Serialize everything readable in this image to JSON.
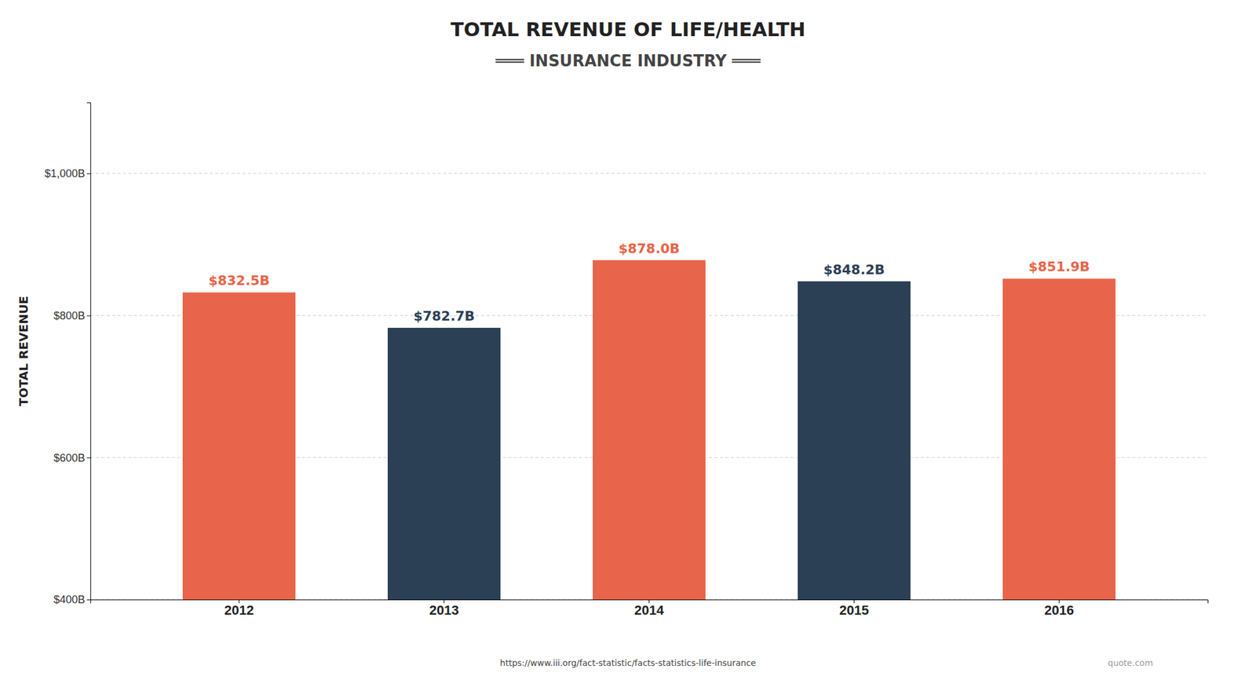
{
  "chart_data": {
    "type": "bar",
    "title": "TOTAL REVENUE OF LIFE/HEALTH",
    "subtitle": "═══  INSURANCE INDUSTRY  ═══",
    "y_label": "TOTAL REVENUE",
    "categories": [
      "2012",
      "2013",
      "2014",
      "2015",
      "2016"
    ],
    "values": [
      832.5,
      782.7,
      878.0,
      848.2,
      851.9
    ],
    "value_labels": [
      "$832.5B",
      "$782.7B",
      "$878.0B",
      "$848.2B",
      "$851.9B"
    ],
    "data_labels": true,
    "colors": [
      "#E8644A",
      "#2B4055",
      "#E8644A",
      "#2B4055",
      "#E8644A"
    ],
    "ylim": [
      400,
      1100
    ],
    "yticks": [
      {
        "value": 400,
        "label": "$400B"
      },
      {
        "value": 600,
        "label": "$600B"
      },
      {
        "value": 800,
        "label": "$800B"
      },
      {
        "value": 1000,
        "label": "$1,000B"
      }
    ],
    "grid": true,
    "annotations": [
      "https://www.iii.org/fact-statistic/facts-statistics-life-insurance",
      "quote.com"
    ]
  }
}
